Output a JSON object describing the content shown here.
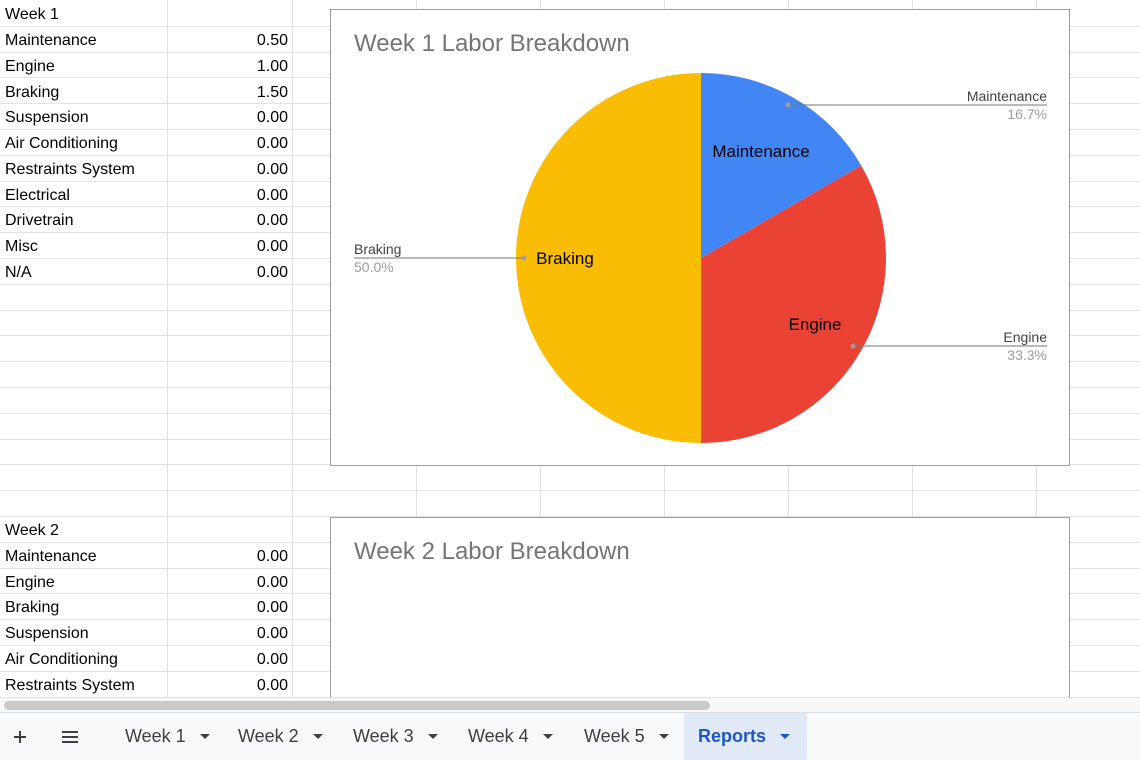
{
  "sheet": {
    "week1": {
      "header": "Week 1",
      "rows": [
        {
          "label": "Maintenance",
          "value": "0.50"
        },
        {
          "label": "Engine",
          "value": "1.00"
        },
        {
          "label": "Braking",
          "value": "1.50"
        },
        {
          "label": "Suspension",
          "value": "0.00"
        },
        {
          "label": "Air Conditioning",
          "value": "0.00"
        },
        {
          "label": "Restraints System",
          "value": "0.00"
        },
        {
          "label": "Electrical",
          "value": "0.00"
        },
        {
          "label": "Drivetrain",
          "value": "0.00"
        },
        {
          "label": "Misc",
          "value": "0.00"
        },
        {
          "label": "N/A",
          "value": "0.00"
        }
      ]
    },
    "week2": {
      "header": "Week 2",
      "rows": [
        {
          "label": "Maintenance",
          "value": "0.00"
        },
        {
          "label": "Engine",
          "value": "0.00"
        },
        {
          "label": "Braking",
          "value": "0.00"
        },
        {
          "label": "Suspension",
          "value": "0.00"
        },
        {
          "label": "Air Conditioning",
          "value": "0.00"
        },
        {
          "label": "Restraints System",
          "value": "0.00"
        }
      ]
    }
  },
  "charts": {
    "chart2_title": "Week 2 Labor Breakdown"
  },
  "chart_data": {
    "type": "pie",
    "title": "Week 1 Labor Breakdown",
    "slices": [
      {
        "label": "Maintenance",
        "value": 0.5,
        "percent": "16.7%",
        "color": "#4285f4"
      },
      {
        "label": "Engine",
        "value": 1.0,
        "percent": "33.3%",
        "color": "#ea4335"
      },
      {
        "label": "Braking",
        "value": 1.5,
        "percent": "50.0%",
        "color": "#fbbc04"
      }
    ]
  },
  "tabs": {
    "add_icon": "plus-icon",
    "list_icon": "menu-icon",
    "items": [
      {
        "label": "Week 1",
        "active": false
      },
      {
        "label": "Week 2",
        "active": false
      },
      {
        "label": "Week 3",
        "active": false
      },
      {
        "label": "Week 4",
        "active": false
      },
      {
        "label": "Week 5",
        "active": false
      },
      {
        "label": "Reports",
        "active": true
      }
    ]
  }
}
